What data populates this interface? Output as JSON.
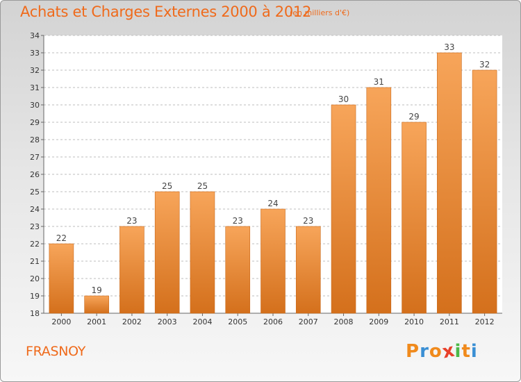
{
  "header": {
    "title": "Achats et Charges Externes 2000 à 2012",
    "unit": "(en milliers d'€)"
  },
  "footer": {
    "commune": "FRASNOY",
    "logo_letters": [
      "P",
      "r",
      "o",
      "x",
      "i",
      "t",
      "i"
    ],
    "logo_colors": [
      "#f08a1c",
      "#3a8fd4",
      "#f08a1c",
      "#e8402a",
      "#4db848",
      "#f08a1c",
      "#3a8fd4"
    ]
  },
  "colors": {
    "bar_top": "#f7a55a",
    "bar_bottom": "#d4701c",
    "bar_edge": "#c9691b",
    "title": "#ef6a1b",
    "grid": "#bdbdbd"
  },
  "chart_data": {
    "type": "bar",
    "title": "Achats et Charges Externes 2000 à 2012",
    "subtitle": "(en milliers d'€)",
    "categories": [
      "2000",
      "2001",
      "2002",
      "2003",
      "2004",
      "2005",
      "2006",
      "2007",
      "2008",
      "2009",
      "2010",
      "2011",
      "2012"
    ],
    "values": [
      22,
      19,
      23,
      25,
      25,
      23,
      24,
      23,
      30,
      31,
      29,
      33,
      32
    ],
    "xlabel": "",
    "ylabel": "",
    "ylim": [
      18,
      34
    ],
    "yticks": [
      18,
      19,
      20,
      21,
      22,
      23,
      24,
      25,
      26,
      27,
      28,
      29,
      30,
      31,
      32,
      33,
      34
    ],
    "grid": "horizontal dashed",
    "data_labels": true
  }
}
